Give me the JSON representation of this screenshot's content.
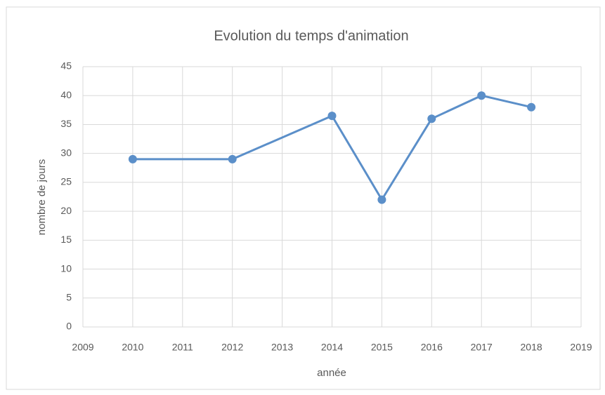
{
  "chart_data": {
    "type": "line",
    "title": "Evolution du temps d'animation",
    "xlabel": "année",
    "ylabel": "nombre de jours",
    "x": [
      2010,
      2012,
      2014,
      2015,
      2016,
      2017,
      2018
    ],
    "values": [
      29,
      29,
      36.5,
      22,
      36,
      40,
      38
    ],
    "color": "#5b8fc9",
    "xlim": [
      2009,
      2019
    ],
    "xticks": [
      2009,
      2010,
      2011,
      2012,
      2013,
      2014,
      2015,
      2016,
      2017,
      2018,
      2019
    ],
    "ylim": [
      0,
      45
    ],
    "yticks": [
      0,
      5,
      10,
      15,
      20,
      25,
      30,
      35,
      40,
      45
    ],
    "grid": true
  }
}
